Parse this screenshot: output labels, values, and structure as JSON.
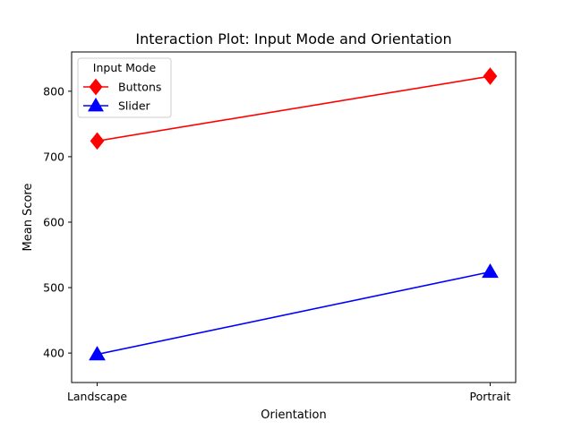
{
  "chart_data": {
    "type": "line",
    "title": "Interaction Plot: Input Mode and Orientation",
    "xlabel": "Orientation",
    "ylabel": "Mean Score",
    "categories": [
      "Landscape",
      "Portrait"
    ],
    "ylim": [
      355,
      860
    ],
    "yticks": [
      400,
      500,
      600,
      700,
      800
    ],
    "grid": false,
    "legend": {
      "title": "Input Mode",
      "placement": "top-left"
    },
    "series": [
      {
        "name": "Buttons",
        "values": [
          724,
          823
        ],
        "color": "#ff0000",
        "marker": "diamond"
      },
      {
        "name": "Slider",
        "values": [
          398,
          524
        ],
        "color": "#0000ff",
        "marker": "triangle"
      }
    ]
  }
}
